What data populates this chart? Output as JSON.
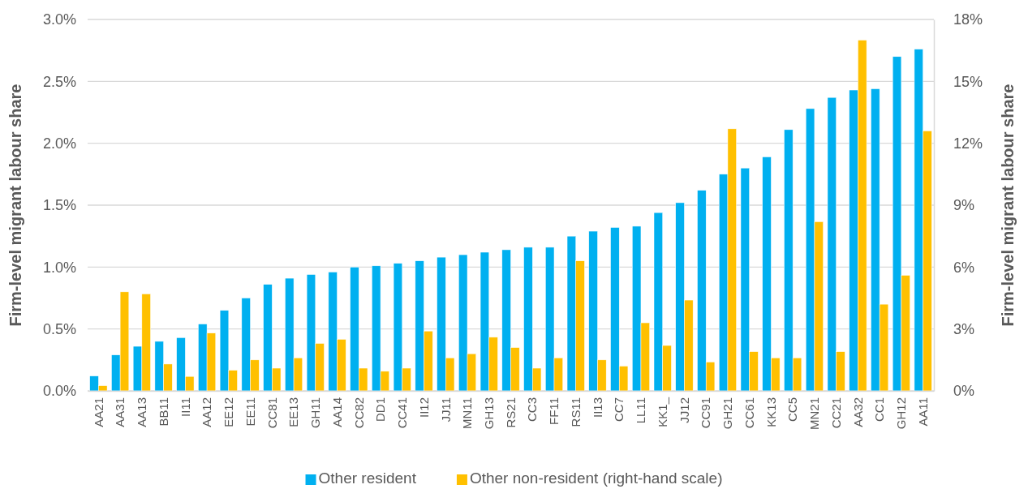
{
  "chart_data": {
    "type": "bar",
    "ylabel": "Firm-level migrant labour share",
    "y2label": "Firm-level migrant labour share",
    "categories": [
      "AA21",
      "AA31",
      "AA13",
      "BB11",
      "II11",
      "AA12",
      "EE12",
      "EE11",
      "CC81",
      "EE13",
      "GH11",
      "AA14",
      "CC82",
      "DD1",
      "CC41",
      "II12",
      "JJ11",
      "MN11",
      "GH13",
      "RS21",
      "CC3",
      "FF11",
      "RS11",
      "II13",
      "CC7",
      "LL11",
      "KK1_",
      "JJ12",
      "CC91",
      "GH21",
      "CC61",
      "KK13",
      "CC5",
      "MN21",
      "CC21",
      "AA32",
      "CC1",
      "GH12",
      "AA11"
    ],
    "series": [
      {
        "name": "Other resident",
        "color": "#00b0f0",
        "values": [
          0.12,
          0.29,
          0.36,
          0.4,
          0.43,
          0.54,
          0.65,
          0.75,
          0.86,
          0.91,
          0.94,
          0.96,
          1.0,
          1.01,
          1.03,
          1.05,
          1.08,
          1.1,
          1.12,
          1.14,
          1.16,
          1.16,
          1.25,
          1.29,
          1.32,
          1.33,
          1.44,
          1.52,
          1.62,
          1.75,
          1.8,
          1.89,
          2.11,
          2.28,
          2.37,
          2.43,
          2.44,
          2.7,
          2.76
        ]
      },
      {
        "name": "Other non-resident (right-hand scale)",
        "color": "#ffc000",
        "axis": "y2",
        "values": [
          0.25,
          4.8,
          4.7,
          1.3,
          0.7,
          2.8,
          1.0,
          1.5,
          1.1,
          1.6,
          2.3,
          2.5,
          1.1,
          0.95,
          1.1,
          2.9,
          1.6,
          1.8,
          2.6,
          2.1,
          1.1,
          1.6,
          6.3,
          1.5,
          1.2,
          3.3,
          2.2,
          4.4,
          1.4,
          12.7,
          1.9,
          1.6,
          1.6,
          8.2,
          1.9,
          17.0,
          4.2,
          5.6,
          12.6
        ]
      }
    ],
    "ylim": [
      0,
      3
    ],
    "yticks": [
      {
        "value": 0,
        "label": "0.0%"
      },
      {
        "value": 0.5,
        "label": "0.5%"
      },
      {
        "value": 1,
        "label": "1.0%"
      },
      {
        "value": 1.5,
        "label": "1.5%"
      },
      {
        "value": 2,
        "label": "2.0%"
      },
      {
        "value": 2.5,
        "label": "2.5%"
      },
      {
        "value": 3,
        "label": "3.0%"
      }
    ],
    "y2lim": [
      0,
      18
    ],
    "y2ticks": [
      {
        "value": 0,
        "label": "0%"
      },
      {
        "value": 3,
        "label": "3%"
      },
      {
        "value": 6,
        "label": "6%"
      },
      {
        "value": 9,
        "label": "9%"
      },
      {
        "value": 12,
        "label": "12%"
      },
      {
        "value": 15,
        "label": "15%"
      },
      {
        "value": 18,
        "label": "18%"
      }
    ],
    "grid": "y",
    "legend": "bottom"
  }
}
